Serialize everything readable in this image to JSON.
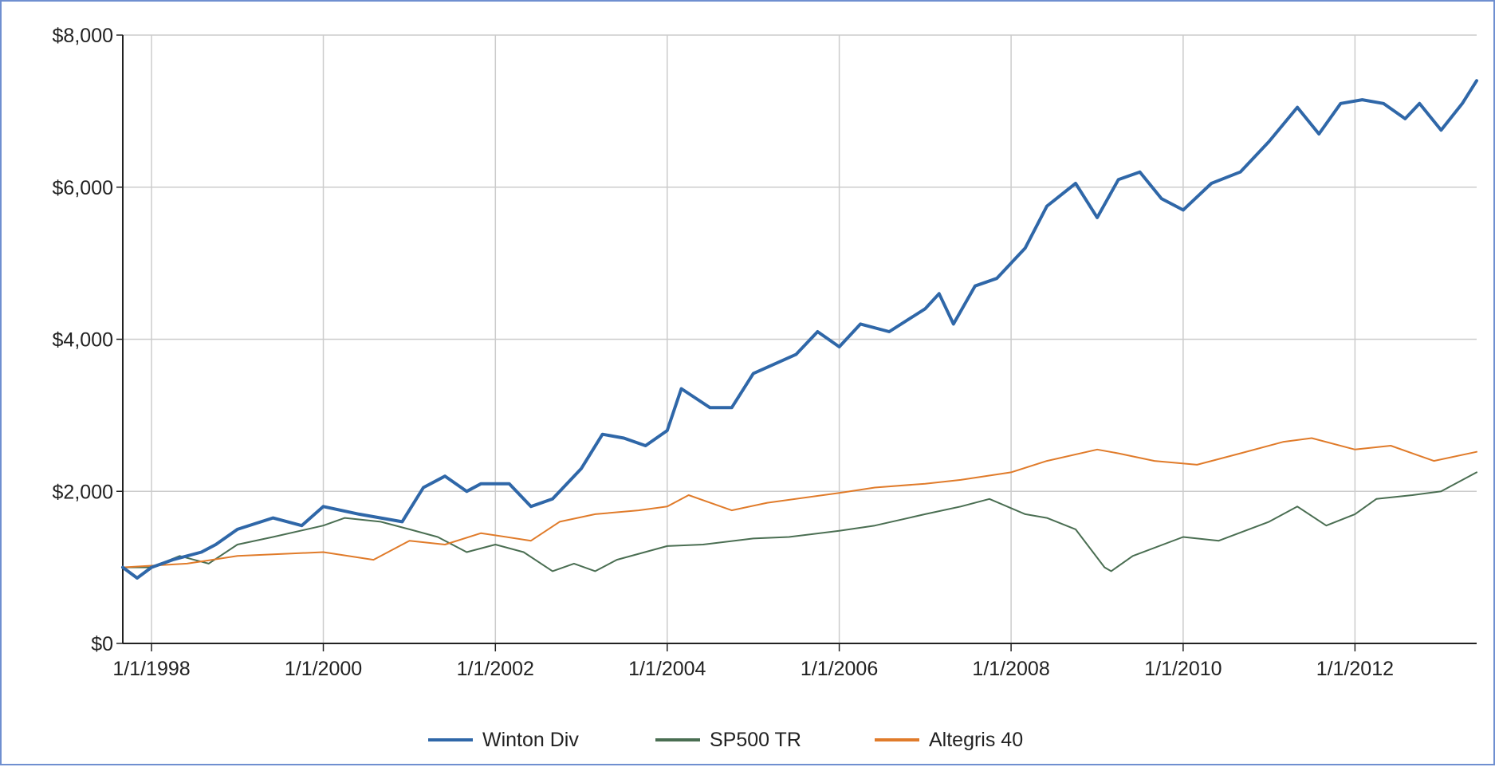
{
  "colors": {
    "winton": "#2f67a8",
    "sp500": "#4a6e52",
    "altegris": "#e07b2a",
    "grid": "#cccccc",
    "axis": "#222222",
    "border": "#6f8fd0"
  },
  "chart_data": {
    "type": "line",
    "title": "",
    "xlabel": "",
    "ylabel": "",
    "x_axis": {
      "type": "date",
      "range": [
        "1997-09-01",
        "2013-06-01"
      ],
      "tick_labels": [
        "1/1/1998",
        "1/1/2000",
        "1/1/2002",
        "1/1/2004",
        "1/1/2006",
        "1/1/2008",
        "1/1/2010",
        "1/1/2012"
      ],
      "tick_dates": [
        "1998-01-01",
        "2000-01-01",
        "2002-01-01",
        "2004-01-01",
        "2006-01-01",
        "2008-01-01",
        "2010-01-01",
        "2012-01-01"
      ]
    },
    "y_axis": {
      "range": [
        0,
        8000
      ],
      "tick_values": [
        0,
        2000,
        4000,
        6000,
        8000
      ],
      "tick_labels": [
        "$0",
        "$2,000",
        "$4,000",
        "$6,000",
        "$8,000"
      ]
    },
    "grid": true,
    "legend": "bottom",
    "series": [
      {
        "name": "Winton Div",
        "color": "#2f67a8",
        "points": [
          [
            "1997-09-01",
            1000
          ],
          [
            "1997-11-01",
            860
          ],
          [
            "1998-01-01",
            1000
          ],
          [
            "1998-04-01",
            1100
          ],
          [
            "1998-08-01",
            1200
          ],
          [
            "1998-10-01",
            1300
          ],
          [
            "1999-01-01",
            1500
          ],
          [
            "1999-06-01",
            1650
          ],
          [
            "1999-10-01",
            1550
          ],
          [
            "2000-01-01",
            1800
          ],
          [
            "2000-06-01",
            1700
          ],
          [
            "2000-12-01",
            1600
          ],
          [
            "2001-03-01",
            2050
          ],
          [
            "2001-06-01",
            2200
          ],
          [
            "2001-09-01",
            2000
          ],
          [
            "2001-11-01",
            2100
          ],
          [
            "2002-03-01",
            2100
          ],
          [
            "2002-06-01",
            1800
          ],
          [
            "2002-09-01",
            1900
          ],
          [
            "2003-01-01",
            2300
          ],
          [
            "2003-04-01",
            2750
          ],
          [
            "2003-07-01",
            2700
          ],
          [
            "2003-10-01",
            2600
          ],
          [
            "2004-01-01",
            2800
          ],
          [
            "2004-03-01",
            3350
          ],
          [
            "2004-07-01",
            3100
          ],
          [
            "2004-10-01",
            3100
          ],
          [
            "2005-01-01",
            3550
          ],
          [
            "2005-07-01",
            3800
          ],
          [
            "2005-10-01",
            4100
          ],
          [
            "2006-01-01",
            3900
          ],
          [
            "2006-04-01",
            4200
          ],
          [
            "2006-08-01",
            4100
          ],
          [
            "2007-01-01",
            4400
          ],
          [
            "2007-03-01",
            4600
          ],
          [
            "2007-05-01",
            4200
          ],
          [
            "2007-08-01",
            4700
          ],
          [
            "2007-11-01",
            4800
          ],
          [
            "2008-03-01",
            5200
          ],
          [
            "2008-06-01",
            5750
          ],
          [
            "2008-10-01",
            6050
          ],
          [
            "2009-01-01",
            5600
          ],
          [
            "2009-04-01",
            6100
          ],
          [
            "2009-07-01",
            6200
          ],
          [
            "2009-10-01",
            5850
          ],
          [
            "2010-01-01",
            5700
          ],
          [
            "2010-05-01",
            6050
          ],
          [
            "2010-09-01",
            6200
          ],
          [
            "2011-01-01",
            6600
          ],
          [
            "2011-05-01",
            7050
          ],
          [
            "2011-08-01",
            6700
          ],
          [
            "2011-11-01",
            7100
          ],
          [
            "2012-02-01",
            7150
          ],
          [
            "2012-05-01",
            7100
          ],
          [
            "2012-08-01",
            6900
          ],
          [
            "2012-10-01",
            7100
          ],
          [
            "2013-01-01",
            6750
          ],
          [
            "2013-04-01",
            7100
          ],
          [
            "2013-06-01",
            7400
          ]
        ]
      },
      {
        "name": "SP500 TR",
        "color": "#4a6e52",
        "points": [
          [
            "1997-09-01",
            1000
          ],
          [
            "1998-01-01",
            1000
          ],
          [
            "1998-05-01",
            1150
          ],
          [
            "1998-09-01",
            1050
          ],
          [
            "1999-01-01",
            1300
          ],
          [
            "1999-06-01",
            1400
          ],
          [
            "2000-01-01",
            1550
          ],
          [
            "2000-04-01",
            1650
          ],
          [
            "2000-09-01",
            1600
          ],
          [
            "2001-01-01",
            1500
          ],
          [
            "2001-05-01",
            1400
          ],
          [
            "2001-09-01",
            1200
          ],
          [
            "2002-01-01",
            1300
          ],
          [
            "2002-05-01",
            1200
          ],
          [
            "2002-09-01",
            950
          ],
          [
            "2002-12-01",
            1050
          ],
          [
            "2003-03-01",
            950
          ],
          [
            "2003-06-01",
            1100
          ],
          [
            "2004-01-01",
            1280
          ],
          [
            "2004-06-01",
            1300
          ],
          [
            "2005-01-01",
            1380
          ],
          [
            "2005-06-01",
            1400
          ],
          [
            "2006-01-01",
            1480
          ],
          [
            "2006-06-01",
            1550
          ],
          [
            "2007-01-01",
            1700
          ],
          [
            "2007-06-01",
            1800
          ],
          [
            "2007-10-01",
            1900
          ],
          [
            "2008-03-01",
            1700
          ],
          [
            "2008-06-01",
            1650
          ],
          [
            "2008-10-01",
            1500
          ],
          [
            "2009-02-01",
            1000
          ],
          [
            "2009-03-01",
            950
          ],
          [
            "2009-06-01",
            1150
          ],
          [
            "2010-01-01",
            1400
          ],
          [
            "2010-06-01",
            1350
          ],
          [
            "2011-01-01",
            1600
          ],
          [
            "2011-05-01",
            1800
          ],
          [
            "2011-09-01",
            1550
          ],
          [
            "2012-01-01",
            1700
          ],
          [
            "2012-04-01",
            1900
          ],
          [
            "2012-09-01",
            1950
          ],
          [
            "2013-01-01",
            2000
          ],
          [
            "2013-06-01",
            2250
          ]
        ]
      },
      {
        "name": "Altegris 40",
        "color": "#e07b2a",
        "points": [
          [
            "1997-09-01",
            1000
          ],
          [
            "1998-06-01",
            1050
          ],
          [
            "1999-01-01",
            1150
          ],
          [
            "2000-01-01",
            1200
          ],
          [
            "2000-08-01",
            1100
          ],
          [
            "2001-01-01",
            1350
          ],
          [
            "2001-06-01",
            1300
          ],
          [
            "2001-11-01",
            1450
          ],
          [
            "2002-06-01",
            1350
          ],
          [
            "2002-10-01",
            1600
          ],
          [
            "2003-03-01",
            1700
          ],
          [
            "2003-09-01",
            1750
          ],
          [
            "2004-01-01",
            1800
          ],
          [
            "2004-04-01",
            1950
          ],
          [
            "2004-10-01",
            1750
          ],
          [
            "2005-03-01",
            1850
          ],
          [
            "2006-01-01",
            1980
          ],
          [
            "2006-06-01",
            2050
          ],
          [
            "2007-01-01",
            2100
          ],
          [
            "2007-06-01",
            2150
          ],
          [
            "2008-01-01",
            2250
          ],
          [
            "2008-06-01",
            2400
          ],
          [
            "2009-01-01",
            2550
          ],
          [
            "2009-04-01",
            2500
          ],
          [
            "2009-09-01",
            2400
          ],
          [
            "2010-03-01",
            2350
          ],
          [
            "2010-09-01",
            2500
          ],
          [
            "2011-03-01",
            2650
          ],
          [
            "2011-07-01",
            2700
          ],
          [
            "2012-01-01",
            2550
          ],
          [
            "2012-06-01",
            2600
          ],
          [
            "2012-12-01",
            2400
          ],
          [
            "2013-06-01",
            2520
          ]
        ]
      }
    ]
  }
}
